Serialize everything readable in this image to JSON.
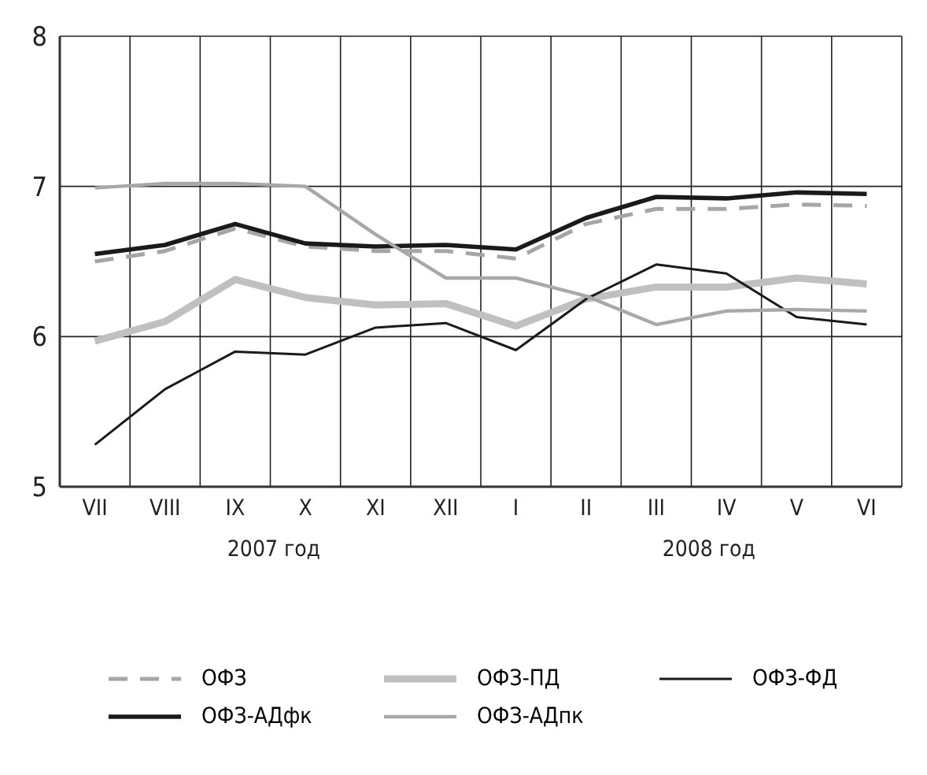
{
  "chart_data": {
    "type": "line",
    "categories": [
      "VII",
      "VIII",
      "IX",
      "X",
      "XI",
      "XII",
      "I",
      "II",
      "III",
      "IV",
      "V",
      "VI"
    ],
    "series": [
      {
        "name": "ОФЗ",
        "color": "#a6a6a6",
        "line_style": "dashed",
        "values": [
          6.5,
          6.57,
          6.72,
          6.6,
          6.57,
          6.57,
          6.52,
          6.75,
          6.85,
          6.85,
          6.88,
          6.87
        ]
      },
      {
        "name": "ОФЗ-ПД",
        "color": "#c0c0c0",
        "values": [
          5.97,
          6.1,
          6.38,
          6.26,
          6.21,
          6.22,
          6.07,
          6.25,
          6.33,
          6.33,
          6.39,
          6.35
        ]
      },
      {
        "name": "ОФЗ-ФД",
        "color": "#1a1a1a",
        "values": [
          5.28,
          5.65,
          5.9,
          5.88,
          6.06,
          6.09,
          5.91,
          6.25,
          6.48,
          6.42,
          6.13,
          6.08
        ]
      },
      {
        "name": "ОФЗ-АДфк",
        "color": "#1a1a1a",
        "values": [
          6.55,
          6.61,
          6.75,
          6.62,
          6.6,
          6.61,
          6.58,
          6.79,
          6.93,
          6.92,
          6.96,
          6.95
        ]
      },
      {
        "name": "ОФЗ-АДпк",
        "color": "#a8a8a8",
        "values": [
          6.99,
          7.02,
          7.02,
          7.0,
          6.68,
          6.39,
          6.39,
          6.27,
          6.08,
          6.17,
          6.18,
          6.17
        ]
      }
    ],
    "ylim": [
      5,
      8
    ],
    "yticks": [
      5,
      6,
      7,
      8
    ],
    "grid": true,
    "legend": "bottom",
    "line_style": "solid",
    "marker": "none",
    "annotations": [
      "2007 год",
      "2008 год"
    ]
  }
}
